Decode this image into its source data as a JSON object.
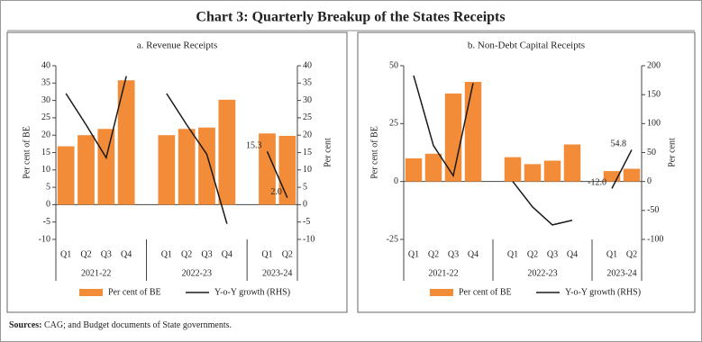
{
  "title": "Chart 3: Quarterly Breakup of the States Receipts",
  "source": {
    "label": "Sources:",
    "text": "CAG; and Budget documents of State governments."
  },
  "chart_data": [
    {
      "type": "combo",
      "subtitle": "a. Revenue Receipts",
      "categories": [
        "Q1",
        "Q2",
        "Q3",
        "Q4",
        null,
        "Q1",
        "Q2",
        "Q3",
        "Q4",
        null,
        "Q1",
        "Q2"
      ],
      "group_labels": [
        "2021-22",
        "2022-23",
        "2023-24"
      ],
      "ylabel": "Per cent of BE",
      "y2label": "Per cent",
      "ylim": [
        -10,
        40
      ],
      "yticks": [
        -10,
        -5,
        0,
        5,
        10,
        15,
        20,
        25,
        30,
        35,
        40
      ],
      "y2lim": [
        -10,
        40
      ],
      "y2ticks": [
        -10,
        -5,
        0,
        5,
        10,
        15,
        20,
        25,
        30,
        35,
        40
      ],
      "series": [
        {
          "name": "Per cent of BE",
          "type": "bar",
          "color": "#f28c38",
          "values": [
            16.8,
            20,
            21.8,
            35.8,
            null,
            20,
            21.8,
            22.2,
            30.2,
            null,
            20.5,
            19.8
          ]
        },
        {
          "name": "Y-o-Y growth (RHS)",
          "type": "line",
          "axis": "y2",
          "color": "#1a1a1a",
          "values": [
            32,
            23,
            13.5,
            37,
            null,
            32,
            23,
            14.5,
            -5.5,
            null,
            15.3,
            2.0
          ],
          "value_labels": [
            null,
            null,
            null,
            null,
            null,
            null,
            null,
            null,
            null,
            null,
            "15.3",
            "2.0"
          ]
        }
      ]
    },
    {
      "type": "combo",
      "subtitle": "b. Non-Debt Capital Receipts",
      "categories": [
        "Q1",
        "Q2",
        "Q3",
        "Q4",
        null,
        "Q1",
        "Q2",
        "Q3",
        "Q4",
        null,
        "Q1",
        "Q2"
      ],
      "group_labels": [
        "2021-22",
        "2022-23",
        "2023-24"
      ],
      "ylabel": "Per cent of BE",
      "y2label": "Per cent",
      "ylim": [
        -25,
        50
      ],
      "yticks": [
        -25,
        0,
        25,
        50
      ],
      "y2lim": [
        -100,
        200
      ],
      "y2ticks": [
        -100,
        -50,
        0,
        50,
        100,
        150,
        200
      ],
      "series": [
        {
          "name": "Per cent of BE",
          "type": "bar",
          "color": "#f28c38",
          "values": [
            10,
            12,
            38,
            43,
            null,
            10.5,
            7.5,
            9,
            16,
            null,
            4.5,
            5.5
          ]
        },
        {
          "name": "Y-o-Y growth (RHS)",
          "type": "line",
          "axis": "y2",
          "color": "#1a1a1a",
          "values": [
            183,
            62,
            10,
            170,
            null,
            0,
            -44,
            -75,
            -67,
            null,
            -12.0,
            54.8
          ],
          "value_labels": [
            null,
            null,
            null,
            null,
            null,
            null,
            null,
            null,
            null,
            null,
            "-12.0",
            "54.8"
          ]
        }
      ]
    }
  ]
}
